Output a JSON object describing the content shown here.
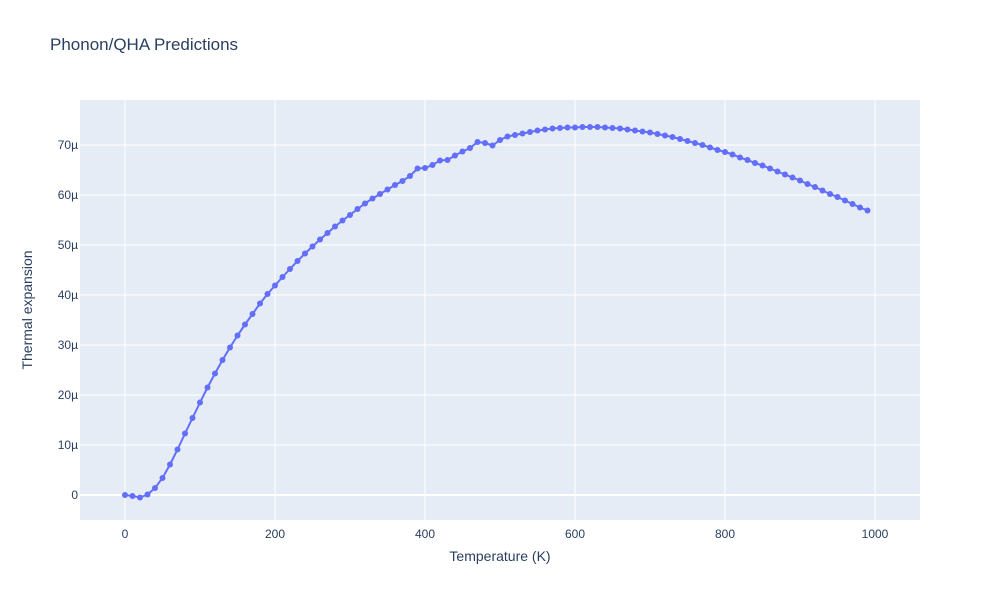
{
  "chart_data": {
    "type": "line",
    "title": "Phonon/QHA Predictions",
    "xlabel": "Temperature (K)",
    "ylabel": "Thermal expansion",
    "xlim": [
      -60,
      1060
    ],
    "ylim": [
      -5,
      79
    ],
    "y_unit_suffix": "µ",
    "grid": true,
    "legend": "none",
    "x_ticks": [
      0,
      200,
      400,
      600,
      800,
      1000
    ],
    "x_tick_labels": [
      "0",
      "200",
      "400",
      "600",
      "800",
      "1000"
    ],
    "y_ticks": [
      0,
      10,
      20,
      30,
      40,
      50,
      60,
      70
    ],
    "y_tick_labels": [
      "0",
      "10µ",
      "20µ",
      "30µ",
      "40µ",
      "50µ",
      "60µ",
      "70µ"
    ],
    "colors": {
      "series": "#636efa",
      "plot_bg": "#e5ecf6",
      "grid": "#ffffff",
      "text": "#2a3f5f"
    },
    "series": [
      {
        "marker": "circle",
        "x": [
          0,
          10,
          20,
          30,
          40,
          50,
          60,
          70,
          80,
          90,
          100,
          110,
          120,
          130,
          140,
          150,
          160,
          170,
          180,
          190,
          200,
          210,
          220,
          230,
          240,
          250,
          260,
          270,
          280,
          290,
          300,
          310,
          320,
          330,
          340,
          350,
          360,
          370,
          380,
          390,
          400,
          410,
          420,
          430,
          440,
          450,
          460,
          470,
          480,
          490,
          500,
          510,
          520,
          530,
          540,
          550,
          560,
          570,
          580,
          590,
          600,
          610,
          620,
          630,
          640,
          650,
          660,
          670,
          680,
          690,
          700,
          710,
          720,
          730,
          740,
          750,
          760,
          770,
          780,
          790,
          800,
          810,
          820,
          830,
          840,
          850,
          860,
          870,
          880,
          890,
          900,
          910,
          920,
          930,
          940,
          950,
          960,
          970,
          980,
          990
        ],
        "y": [
          0,
          -0.2,
          -0.5,
          0.1,
          1.4,
          3.4,
          6.1,
          9.1,
          12.3,
          15.4,
          18.5,
          21.5,
          24.3,
          27.0,
          29.5,
          31.9,
          34.1,
          36.2,
          38.3,
          40.2,
          41.9,
          43.6,
          45.2,
          46.8,
          48.3,
          49.7,
          51.1,
          52.4,
          53.7,
          54.9,
          56.0,
          57.2,
          58.3,
          59.3,
          60.2,
          61.1,
          62.0,
          62.8,
          63.8,
          65.3,
          65.4,
          66.0,
          66.9,
          67.0,
          67.9,
          68.7,
          69.4,
          70.6,
          70.4,
          69.9,
          71.0,
          71.7,
          72.0,
          72.3,
          72.6,
          72.9,
          73.1,
          73.3,
          73.4,
          73.5,
          73.5,
          73.6,
          73.6,
          73.6,
          73.5,
          73.4,
          73.3,
          73.1,
          72.9,
          72.7,
          72.5,
          72.2,
          71.9,
          71.6,
          71.2,
          70.8,
          70.4,
          70.0,
          69.5,
          69.0,
          68.6,
          68.1,
          67.5,
          67.0,
          66.4,
          65.9,
          65.3,
          64.7,
          64.1,
          63.5,
          62.9,
          62.2,
          61.6,
          60.9,
          60.2,
          59.6,
          58.9,
          58.2,
          57.5,
          56.9
        ]
      }
    ]
  }
}
